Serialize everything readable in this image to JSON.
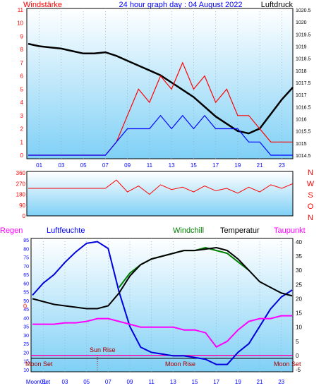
{
  "header": {
    "left_title": "Windstärke",
    "center_title": "24 hour graph day : 04 August 2022",
    "right_title": "Luftdruck"
  },
  "colors": {
    "wind": "#ff0000",
    "gust": "#0000ff",
    "pressure": "#000000",
    "humidity": "#0000dd",
    "windchill": "#008000",
    "temperature": "#000000",
    "dewpoint": "#ff00ff",
    "zero_line": "#ff00aa",
    "panel_top": "#ffffff",
    "panel_bottom": "#7fd0f6",
    "label_blue": "#0000ff",
    "label_red": "#ff0000"
  },
  "chart_data": [
    {
      "type": "line",
      "name": "wind-pressure",
      "x_ticks": [
        "01",
        "03",
        "05",
        "07",
        "09",
        "11",
        "13",
        "15",
        "17",
        "19",
        "21",
        "23"
      ],
      "y_left_ticks": [
        "0",
        "1",
        "2",
        "3",
        "4",
        "5",
        "6",
        "7",
        "8",
        "9",
        "10",
        "11"
      ],
      "y_left_range": [
        0,
        11
      ],
      "y_right_ticks": [
        "1014.5",
        "1015",
        "1015.5",
        "1016",
        "1016.5",
        "1017",
        "1017.5",
        "1018",
        "1018.5",
        "1019",
        "1019.5",
        "1020",
        "1020.5"
      ],
      "y_right_range": [
        1014.5,
        1020.5
      ],
      "series": [
        {
          "key": "pressure",
          "x": [
            0,
            1,
            2,
            3,
            4,
            5,
            6,
            7,
            8,
            9,
            10,
            11,
            12,
            13,
            14,
            15,
            16,
            17,
            18,
            19,
            20,
            21,
            22,
            23,
            24
          ],
          "values": [
            1019.1,
            1019.0,
            1018.95,
            1018.9,
            1018.8,
            1018.7,
            1018.7,
            1018.75,
            1018.6,
            1018.4,
            1018.2,
            1018.0,
            1017.8,
            1017.5,
            1017.2,
            1016.9,
            1016.5,
            1016.1,
            1015.8,
            1015.5,
            1015.4,
            1015.6,
            1016.2,
            1016.8,
            1017.3
          ]
        },
        {
          "key": "wind",
          "x": [
            0,
            1,
            2,
            3,
            4,
            5,
            6,
            7,
            8,
            9,
            10,
            11,
            12,
            13,
            14,
            15,
            16,
            17,
            18,
            19,
            20,
            21,
            22,
            23,
            24
          ],
          "values": [
            0,
            0,
            0,
            0,
            0,
            0,
            0,
            0,
            1,
            3,
            5,
            4,
            6,
            5,
            7,
            5,
            6,
            4,
            5,
            3,
            3,
            2,
            1,
            1,
            1
          ]
        },
        {
          "key": "gust",
          "x": [
            0,
            1,
            2,
            3,
            4,
            5,
            6,
            7,
            8,
            9,
            10,
            11,
            12,
            13,
            14,
            15,
            16,
            17,
            18,
            19,
            20,
            21,
            22,
            23,
            24
          ],
          "values": [
            0,
            0,
            0,
            0,
            0,
            0,
            0,
            0,
            1,
            2,
            2,
            2,
            3,
            2,
            3,
            2,
            3,
            2,
            2,
            2,
            1,
            1,
            0,
            0,
            0
          ]
        }
      ]
    },
    {
      "type": "line",
      "name": "wind-direction",
      "y_left_ticks": [
        "0",
        "90",
        "180",
        "270",
        "360"
      ],
      "y_left_range": [
        0,
        360
      ],
      "y_right_labels": [
        "N",
        "W",
        "S",
        "O",
        "N"
      ],
      "series": [
        {
          "key": "direction",
          "x": [
            0,
            1,
            2,
            3,
            4,
            5,
            6,
            7,
            8,
            9,
            10,
            11,
            12,
            13,
            14,
            15,
            16,
            17,
            18,
            19,
            20,
            21,
            22,
            23,
            24
          ],
          "values": [
            230,
            230,
            230,
            230,
            230,
            230,
            230,
            230,
            300,
            200,
            250,
            180,
            260,
            220,
            240,
            200,
            250,
            210,
            230,
            190,
            240,
            200,
            260,
            230,
            270
          ]
        }
      ]
    },
    {
      "type": "line",
      "name": "humidity-temperature",
      "header": {
        "regen": "Regen",
        "luftfeuchte": "Luftfeuchte",
        "windchill": "Windchill",
        "temperatur": "Temperatur",
        "taupunkt": "Taupunkt"
      },
      "x_ticks": [
        "Moon Set",
        "01",
        "03",
        "05",
        "07",
        "09",
        "11",
        "13",
        "15",
        "17",
        "19",
        "21",
        "23"
      ],
      "y_left_ticks": [
        "10",
        "15",
        "20",
        "25",
        "30",
        "35",
        "40",
        "45",
        "50",
        "55",
        "60",
        "65",
        "70",
        "75",
        "80",
        "85"
      ],
      "y_left_range": [
        10,
        85
      ],
      "y_right_ticks": [
        "-5",
        "0",
        "5",
        "10",
        "15",
        "20",
        "25",
        "30",
        "35",
        "40"
      ],
      "y_right_range": [
        -5,
        40
      ],
      "zero_label": "0",
      "annotations": {
        "sun_rise": "Sun Rise",
        "moon_set_left": "Moon Set",
        "moon_rise": "Moon Rise",
        "moon_set_right": "Moon Set"
      },
      "series": [
        {
          "key": "humidity",
          "x": [
            0,
            1,
            2,
            3,
            4,
            5,
            6,
            7,
            8,
            9,
            10,
            11,
            12,
            13,
            14,
            15,
            16,
            17,
            18,
            19,
            20,
            21,
            22,
            23,
            24
          ],
          "values": [
            53,
            60,
            65,
            72,
            78,
            83,
            84,
            80,
            55,
            35,
            23,
            20,
            19,
            18,
            18,
            17,
            16,
            13,
            13,
            20,
            25,
            35,
            45,
            52,
            56
          ]
        },
        {
          "key": "windchill",
          "x": [
            8,
            9,
            10,
            11,
            12,
            13,
            14,
            15,
            16,
            17,
            18,
            19,
            20
          ],
          "values": [
            24,
            29,
            32,
            34,
            35,
            36,
            37,
            37,
            38,
            37,
            36,
            33,
            30
          ]
        },
        {
          "key": "temperature",
          "x": [
            0,
            1,
            2,
            3,
            4,
            5,
            6,
            7,
            8,
            9,
            10,
            11,
            12,
            13,
            14,
            15,
            16,
            17,
            18,
            19,
            20,
            21,
            22,
            23,
            24
          ],
          "values": [
            20,
            19,
            18,
            17.5,
            17,
            16.5,
            16.5,
            17.5,
            22,
            28,
            32,
            34,
            35,
            36,
            37,
            37,
            37.5,
            38,
            37,
            34,
            30,
            26,
            24,
            22,
            21
          ]
        },
        {
          "key": "dewpoint",
          "x": [
            0,
            1,
            2,
            3,
            4,
            5,
            6,
            7,
            8,
            9,
            10,
            11,
            12,
            13,
            14,
            15,
            16,
            17,
            18,
            19,
            20,
            21,
            22,
            23,
            24
          ],
          "values": [
            11,
            11,
            11,
            11.5,
            11.5,
            12,
            13,
            13,
            12,
            11,
            10,
            10,
            10,
            10,
            9,
            9,
            8,
            3,
            5,
            9,
            12,
            13,
            13,
            14,
            14
          ]
        }
      ]
    }
  ]
}
